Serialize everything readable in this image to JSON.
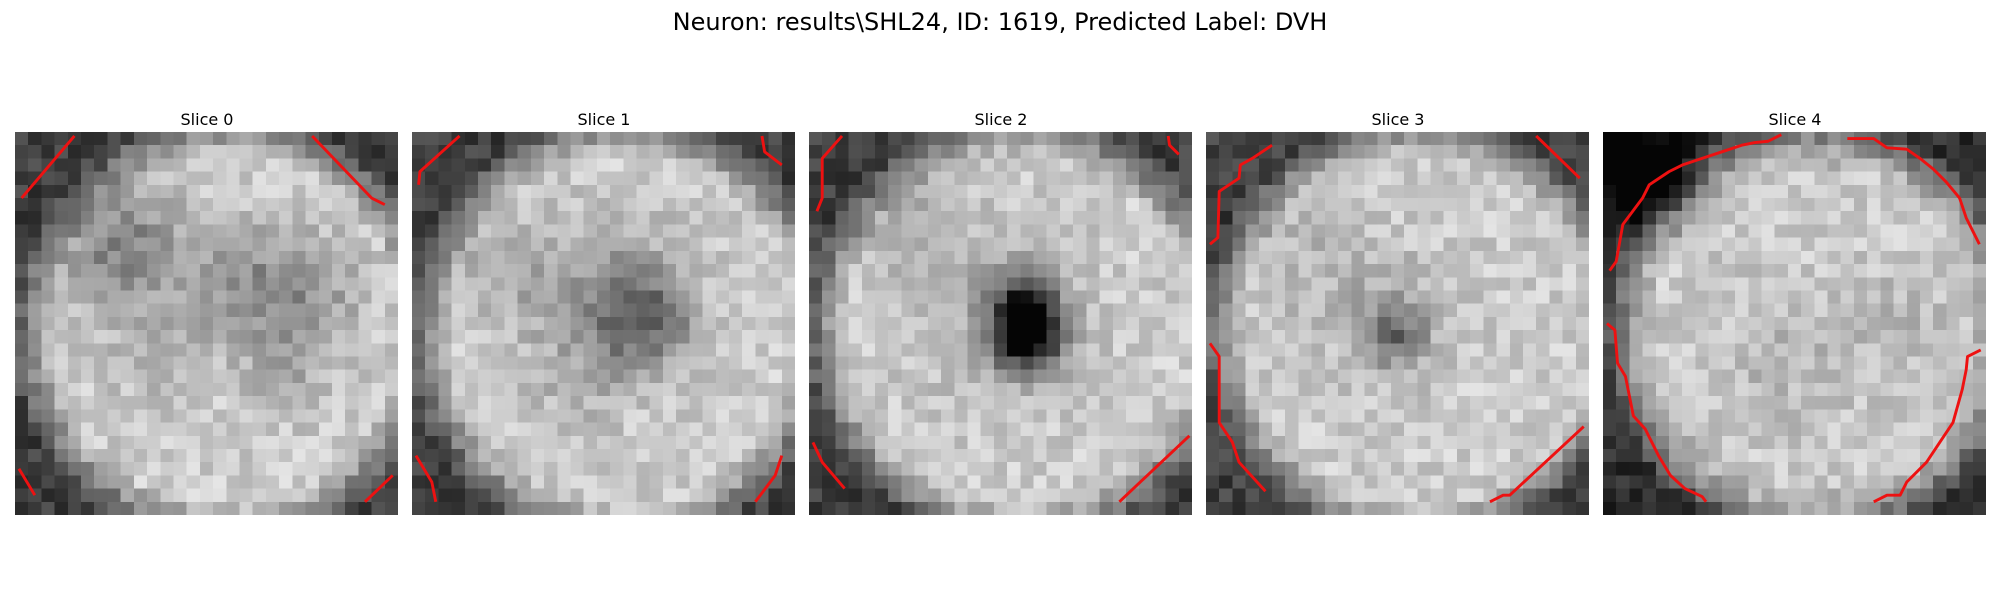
{
  "figure": {
    "title": "Neuron: results\\SHL24, ID: 1619, Predicted Label: DVH"
  },
  "panels": [
    {
      "title": "Slice 0",
      "kind": "rim",
      "cx": 15.5,
      "cy": 14.5,
      "blobs": [
        [
          7.5,
          8,
          3.2,
          0.3
        ],
        [
          21,
          12,
          3.2,
          0.22
        ],
        [
          16,
          11,
          3,
          0.18
        ],
        [
          10,
          16,
          2.5,
          0.12
        ],
        [
          20,
          18,
          2.2,
          0.1
        ]
      ],
      "contours": [
        [
          [
            0.5,
            5
          ],
          [
            4.5,
            0.3
          ]
        ],
        [
          [
            22.5,
            0.3
          ],
          [
            27,
            5
          ],
          [
            28,
            5.5
          ]
        ],
        [
          [
            0.3,
            25.5
          ],
          [
            1.5,
            27.5
          ]
        ],
        [
          [
            26.5,
            28
          ],
          [
            28.6,
            26
          ]
        ]
      ]
    },
    {
      "title": "Slice 1",
      "kind": "rim",
      "cx": 15.5,
      "cy": 14.5,
      "blobs": [
        [
          17,
          14,
          2.6,
          0.35
        ],
        [
          15,
          11,
          3.5,
          0.18
        ],
        [
          7,
          10,
          3,
          0.15
        ],
        [
          12,
          18,
          3,
          0.1
        ]
      ],
      "contours": [
        [
          [
            0.5,
            4
          ],
          [
            0.6,
            3
          ],
          [
            3.6,
            0.3
          ]
        ],
        [
          [
            26.5,
            0.3
          ],
          [
            26.7,
            1.5
          ],
          [
            28,
            2.5
          ]
        ],
        [
          [
            0.3,
            24.5
          ],
          [
            1.5,
            26.5
          ],
          [
            1.8,
            28
          ]
        ],
        [
          [
            26,
            28
          ],
          [
            27.5,
            26
          ],
          [
            28,
            24.5
          ]
        ]
      ]
    },
    {
      "title": "Slice 2",
      "kind": "rim",
      "cx": 15.5,
      "cy": 14.5,
      "blobs": [
        [
          16,
          15,
          1.9,
          0.8
        ],
        [
          16,
          12.5,
          1.6,
          0.5
        ],
        [
          14,
          13,
          4.5,
          0.12
        ],
        [
          7,
          6,
          3,
          0.1
        ]
      ],
      "contours": [
        [
          [
            0.6,
            6
          ],
          [
            1,
            5
          ],
          [
            1,
            2
          ],
          [
            2.5,
            0.3
          ]
        ],
        [
          [
            27.2,
            0.3
          ],
          [
            27.3,
            1
          ],
          [
            28,
            1.7
          ]
        ],
        [
          [
            0.3,
            23.5
          ],
          [
            1,
            25
          ],
          [
            2.7,
            27
          ]
        ],
        [
          [
            23.5,
            28
          ],
          [
            28.8,
            23
          ]
        ]
      ]
    },
    {
      "title": "Slice 3",
      "kind": "rim",
      "cx": 15.5,
      "cy": 14.5,
      "blobs": [
        [
          14,
          15,
          1.6,
          0.33
        ],
        [
          13,
          13,
          3.5,
          0.12
        ],
        [
          6,
          9,
          3,
          0.08
        ]
      ],
      "contours": [
        [
          [
            0.3,
            8.5
          ],
          [
            0.9,
            8
          ],
          [
            1,
            4.5
          ],
          [
            2.5,
            3.5
          ],
          [
            2.6,
            2.5
          ],
          [
            3.5,
            2
          ],
          [
            5,
            1
          ]
        ],
        [
          [
            25,
            0.3
          ],
          [
            28.3,
            3.5
          ]
        ],
        [
          [
            0.3,
            16
          ],
          [
            1,
            17
          ],
          [
            1,
            22
          ],
          [
            2,
            23.5
          ],
          [
            2.5,
            25
          ],
          [
            4.5,
            27.2
          ]
        ],
        [
          [
            21.5,
            28
          ],
          [
            22.5,
            27.5
          ],
          [
            23,
            27.5
          ],
          [
            28.6,
            22.3
          ]
        ]
      ]
    },
    {
      "title": "Slice 4",
      "kind": "rimDark",
      "cx": 15.5,
      "cy": 14.5,
      "blobs": [
        [
          3,
          3,
          2.5,
          0.45
        ],
        [
          13,
          17,
          4,
          0.08
        ],
        [
          22,
          14,
          3,
          0.08
        ]
      ],
      "contours": [
        [
          [
            0.5,
            10.5
          ],
          [
            1,
            9.8
          ],
          [
            1.5,
            7
          ],
          [
            3,
            5
          ],
          [
            3.5,
            4
          ],
          [
            5,
            3
          ],
          [
            6,
            2.5
          ],
          [
            7.5,
            2
          ],
          [
            9,
            1.5
          ],
          [
            10.5,
            1
          ],
          [
            11.5,
            0.8
          ],
          [
            12.5,
            0.7
          ],
          [
            13.5,
            0.2
          ]
        ],
        [
          [
            18.5,
            0.5
          ],
          [
            20.5,
            0.5
          ],
          [
            21.5,
            1.2
          ],
          [
            23,
            1.3
          ],
          [
            24,
            2
          ],
          [
            25,
            2.8
          ],
          [
            26,
            3.8
          ],
          [
            27,
            5
          ],
          [
            27.5,
            6.5
          ],
          [
            28,
            7.5
          ],
          [
            28.5,
            8.5
          ]
        ],
        [
          [
            0.3,
            14.5
          ],
          [
            0.9,
            15
          ],
          [
            1.1,
            17.5
          ],
          [
            1.7,
            18.5
          ],
          [
            2.3,
            21.5
          ],
          [
            3.2,
            22.5
          ],
          [
            4.2,
            24.5
          ],
          [
            5.1,
            26
          ],
          [
            6.2,
            27
          ],
          [
            7.5,
            27.6
          ],
          [
            7.8,
            28
          ]
        ],
        [
          [
            20.5,
            28
          ],
          [
            21.5,
            27.5
          ],
          [
            22.5,
            27.5
          ],
          [
            23,
            26.5
          ],
          [
            24.5,
            25
          ],
          [
            25.5,
            23.5
          ],
          [
            26.5,
            22
          ],
          [
            27.2,
            19.5
          ],
          [
            27.5,
            18
          ],
          [
            27.6,
            17
          ],
          [
            28.6,
            16.5
          ]
        ]
      ]
    }
  ],
  "colors": {
    "contour": "#ee1111",
    "background": "#ffffff"
  }
}
